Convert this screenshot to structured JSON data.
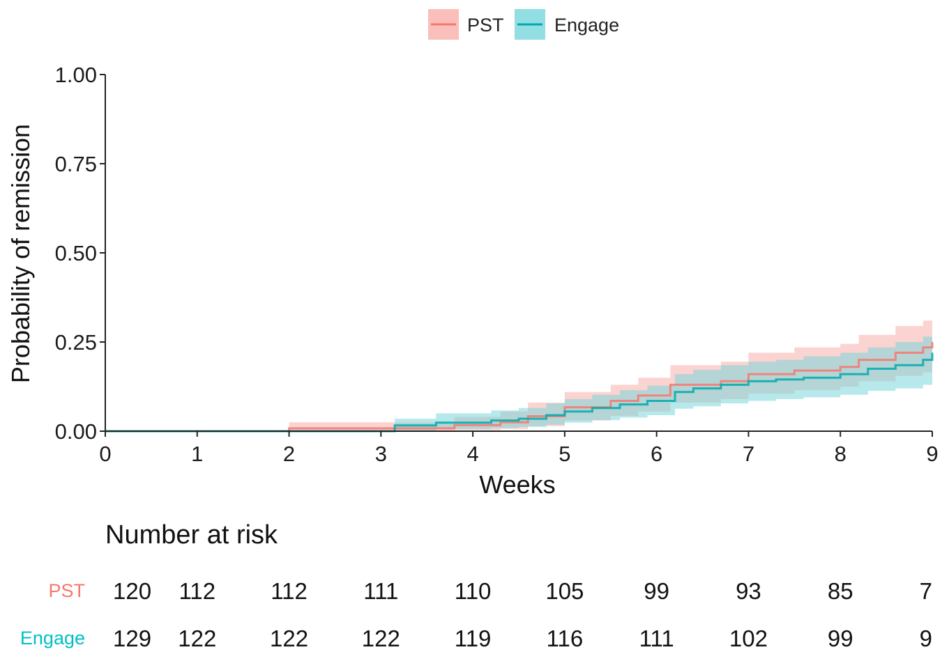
{
  "chart_data": {
    "type": "line",
    "subtype": "kaplan-meier step curve with confidence bands",
    "xlabel": "Weeks",
    "ylabel": "Probability of remission",
    "xlim": [
      0,
      9
    ],
    "ylim": [
      0,
      1
    ],
    "x_ticks": [
      "0",
      "1",
      "2",
      "3",
      "4",
      "5",
      "6",
      "7",
      "8",
      "9"
    ],
    "y_ticks": [
      "0.00",
      "0.25",
      "0.50",
      "0.75",
      "1.00"
    ],
    "legend_position": "top",
    "grid": false,
    "series": [
      {
        "name": "PST",
        "color": "#F8766D",
        "band_color": "#F8A9A3",
        "steps": [
          {
            "x": 0,
            "y": 0
          },
          {
            "x": 2,
            "y": 0.008
          },
          {
            "x": 3.1,
            "y": 0.008
          },
          {
            "x": 3.8,
            "y": 0.017
          },
          {
            "x": 4.3,
            "y": 0.025
          },
          {
            "x": 4.6,
            "y": 0.042
          },
          {
            "x": 5.0,
            "y": 0.067
          },
          {
            "x": 5.5,
            "y": 0.085
          },
          {
            "x": 5.8,
            "y": 0.1
          },
          {
            "x": 6.15,
            "y": 0.13
          },
          {
            "x": 6.7,
            "y": 0.14
          },
          {
            "x": 7.0,
            "y": 0.16
          },
          {
            "x": 7.5,
            "y": 0.17
          },
          {
            "x": 8.0,
            "y": 0.18
          },
          {
            "x": 8.2,
            "y": 0.2
          },
          {
            "x": 8.6,
            "y": 0.22
          },
          {
            "x": 8.9,
            "y": 0.235
          },
          {
            "x": 9.0,
            "y": 0.25
          }
        ],
        "band_upper": [
          {
            "x": 0,
            "y": 0
          },
          {
            "x": 2,
            "y": 0.025
          },
          {
            "x": 3.1,
            "y": 0.025
          },
          {
            "x": 3.8,
            "y": 0.04
          },
          {
            "x": 4.3,
            "y": 0.055
          },
          {
            "x": 4.6,
            "y": 0.08
          },
          {
            "x": 5.0,
            "y": 0.11
          },
          {
            "x": 5.5,
            "y": 0.13
          },
          {
            "x": 5.8,
            "y": 0.15
          },
          {
            "x": 6.15,
            "y": 0.185
          },
          {
            "x": 6.7,
            "y": 0.195
          },
          {
            "x": 7.0,
            "y": 0.22
          },
          {
            "x": 7.5,
            "y": 0.235
          },
          {
            "x": 8.0,
            "y": 0.245
          },
          {
            "x": 8.2,
            "y": 0.27
          },
          {
            "x": 8.6,
            "y": 0.295
          },
          {
            "x": 8.9,
            "y": 0.31
          },
          {
            "x": 9.0,
            "y": 0.32
          }
        ],
        "band_lower": [
          {
            "x": 0,
            "y": 0
          },
          {
            "x": 2,
            "y": 0
          },
          {
            "x": 3.1,
            "y": 0
          },
          {
            "x": 3.8,
            "y": 0.003
          },
          {
            "x": 4.3,
            "y": 0.006
          },
          {
            "x": 4.6,
            "y": 0.014
          },
          {
            "x": 5.0,
            "y": 0.03
          },
          {
            "x": 5.5,
            "y": 0.043
          },
          {
            "x": 5.8,
            "y": 0.055
          },
          {
            "x": 6.15,
            "y": 0.08
          },
          {
            "x": 6.7,
            "y": 0.09
          },
          {
            "x": 7.0,
            "y": 0.105
          },
          {
            "x": 7.5,
            "y": 0.115
          },
          {
            "x": 8.0,
            "y": 0.125
          },
          {
            "x": 8.2,
            "y": 0.14
          },
          {
            "x": 8.6,
            "y": 0.155
          },
          {
            "x": 8.9,
            "y": 0.165
          },
          {
            "x": 9.0,
            "y": 0.175
          }
        ]
      },
      {
        "name": "Engage",
        "color": "#00A9AC",
        "band_color": "#6FD3DA",
        "steps": [
          {
            "x": 0,
            "y": 0
          },
          {
            "x": 3.15,
            "y": 0.016
          },
          {
            "x": 3.6,
            "y": 0.024
          },
          {
            "x": 4.2,
            "y": 0.03
          },
          {
            "x": 4.5,
            "y": 0.035
          },
          {
            "x": 4.8,
            "y": 0.045
          },
          {
            "x": 5.0,
            "y": 0.055
          },
          {
            "x": 5.3,
            "y": 0.065
          },
          {
            "x": 5.6,
            "y": 0.075
          },
          {
            "x": 5.9,
            "y": 0.085
          },
          {
            "x": 6.2,
            "y": 0.11
          },
          {
            "x": 6.4,
            "y": 0.12
          },
          {
            "x": 6.7,
            "y": 0.13
          },
          {
            "x": 7.0,
            "y": 0.14
          },
          {
            "x": 7.3,
            "y": 0.145
          },
          {
            "x": 7.6,
            "y": 0.15
          },
          {
            "x": 8.0,
            "y": 0.16
          },
          {
            "x": 8.3,
            "y": 0.175
          },
          {
            "x": 8.6,
            "y": 0.185
          },
          {
            "x": 8.9,
            "y": 0.2
          },
          {
            "x": 9.0,
            "y": 0.22
          }
        ],
        "band_upper": [
          {
            "x": 0,
            "y": 0
          },
          {
            "x": 3.15,
            "y": 0.035
          },
          {
            "x": 3.6,
            "y": 0.05
          },
          {
            "x": 4.2,
            "y": 0.058
          },
          {
            "x": 4.5,
            "y": 0.065
          },
          {
            "x": 4.8,
            "y": 0.078
          },
          {
            "x": 5.0,
            "y": 0.09
          },
          {
            "x": 5.3,
            "y": 0.102
          },
          {
            "x": 5.6,
            "y": 0.115
          },
          {
            "x": 5.9,
            "y": 0.128
          },
          {
            "x": 6.2,
            "y": 0.16
          },
          {
            "x": 6.4,
            "y": 0.172
          },
          {
            "x": 6.7,
            "y": 0.185
          },
          {
            "x": 7.0,
            "y": 0.195
          },
          {
            "x": 7.3,
            "y": 0.2
          },
          {
            "x": 7.6,
            "y": 0.21
          },
          {
            "x": 8.0,
            "y": 0.22
          },
          {
            "x": 8.3,
            "y": 0.235
          },
          {
            "x": 8.6,
            "y": 0.25
          },
          {
            "x": 8.9,
            "y": 0.265
          },
          {
            "x": 9.0,
            "y": 0.285
          }
        ],
        "band_lower": [
          {
            "x": 0,
            "y": 0
          },
          {
            "x": 3.15,
            "y": 0.002
          },
          {
            "x": 3.6,
            "y": 0.006
          },
          {
            "x": 4.2,
            "y": 0.009
          },
          {
            "x": 4.5,
            "y": 0.012
          },
          {
            "x": 4.8,
            "y": 0.018
          },
          {
            "x": 5.0,
            "y": 0.024
          },
          {
            "x": 5.3,
            "y": 0.031
          },
          {
            "x": 5.6,
            "y": 0.038
          },
          {
            "x": 5.9,
            "y": 0.045
          },
          {
            "x": 6.2,
            "y": 0.063
          },
          {
            "x": 6.4,
            "y": 0.07
          },
          {
            "x": 6.7,
            "y": 0.078
          },
          {
            "x": 7.0,
            "y": 0.085
          },
          {
            "x": 7.3,
            "y": 0.09
          },
          {
            "x": 7.6,
            "y": 0.095
          },
          {
            "x": 8.0,
            "y": 0.102
          },
          {
            "x": 8.3,
            "y": 0.113
          },
          {
            "x": 8.6,
            "y": 0.12
          },
          {
            "x": 8.9,
            "y": 0.13
          },
          {
            "x": 9.0,
            "y": 0.145
          }
        ]
      }
    ],
    "risk_table": {
      "title": "Number at risk",
      "times": [
        0,
        1,
        2,
        3,
        4,
        5,
        6,
        7,
        8,
        9
      ],
      "rows": [
        {
          "group": "PST",
          "color": "#F8766D",
          "values": [
            "120",
            "112",
            "112",
            "111",
            "110",
            "105",
            "99",
            "93",
            "85",
            "7"
          ]
        },
        {
          "group": "Engage",
          "color": "#00BFC4",
          "values": [
            "129",
            "122",
            "122",
            "122",
            "119",
            "116",
            "111",
            "102",
            "99",
            "9"
          ]
        }
      ]
    }
  }
}
